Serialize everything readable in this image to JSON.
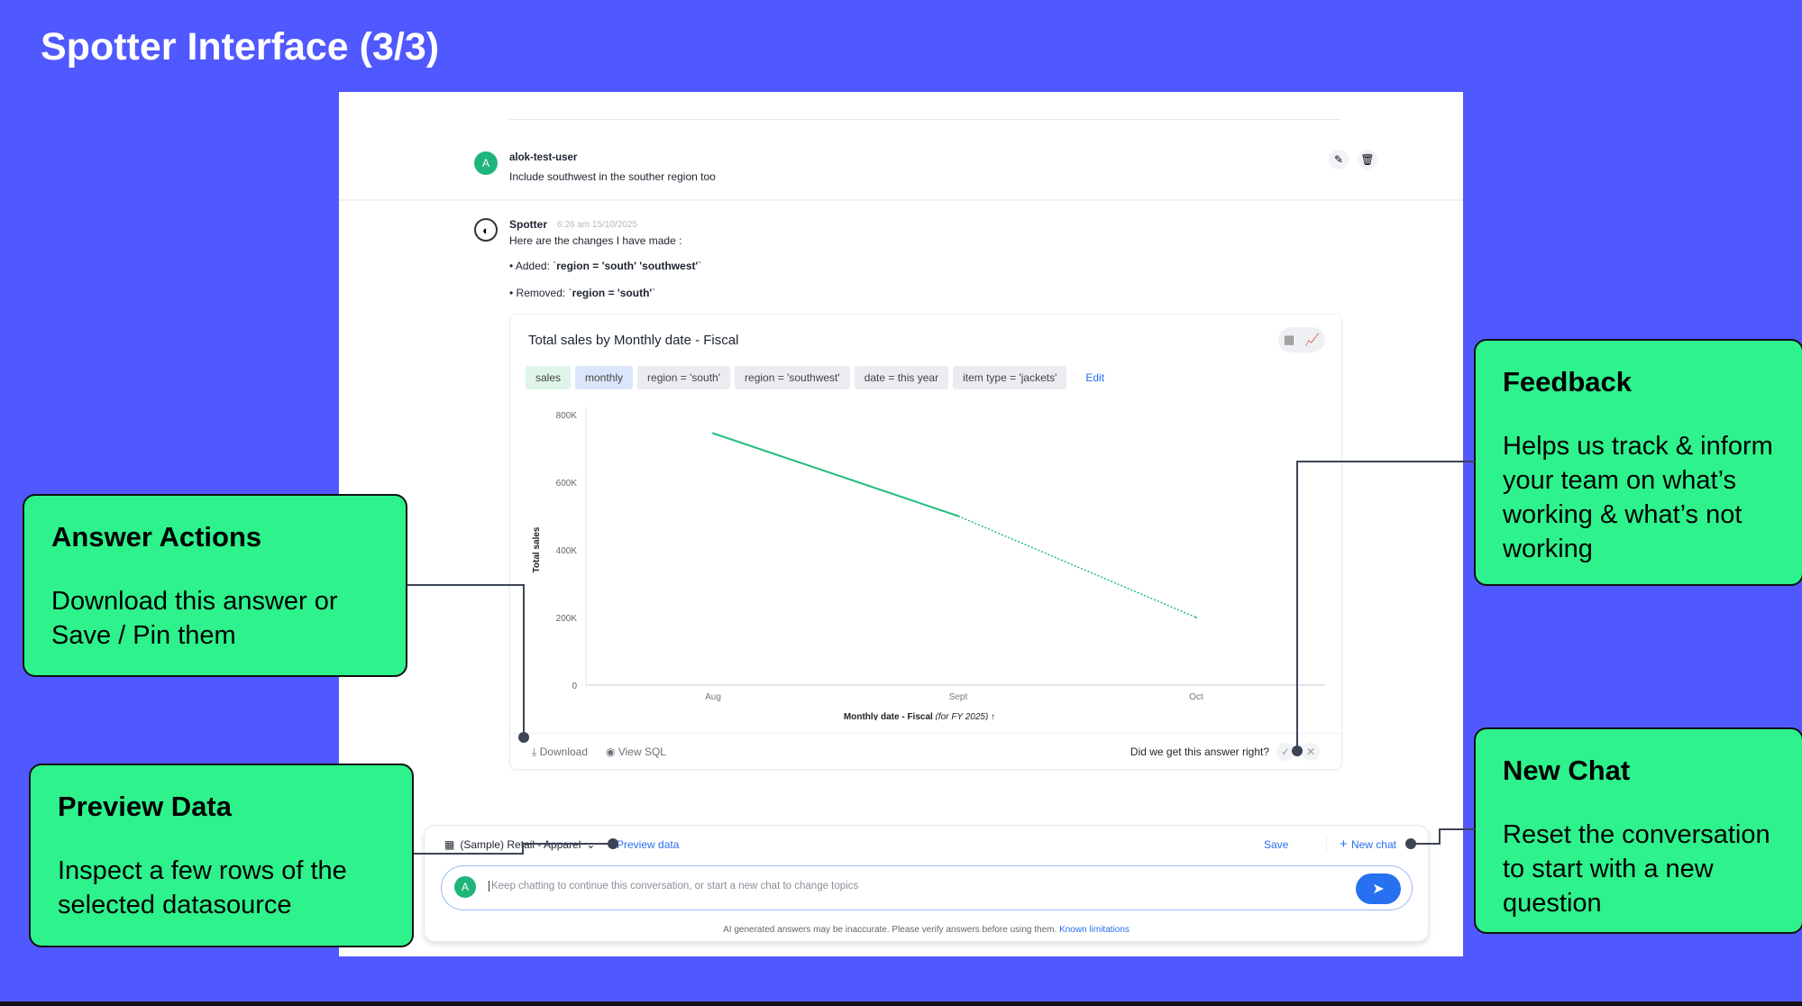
{
  "slide_title": "Spotter Interface (3/3)",
  "user_message": {
    "avatar": "A",
    "name": "alok-test-user",
    "text": "Include southwest in the souther region too",
    "icons": [
      "pencil-icon",
      "trash-icon"
    ]
  },
  "spotter_message": {
    "name": "Spotter",
    "timestamp": "6:26 am 15/10/2025",
    "intro": "Here are the changes I have made :",
    "added_label": "• Added: `",
    "added_value": "region = 'south' 'southwest'",
    "removed_label": "• Removed: `",
    "removed_value": "region = 'south'",
    "tick_close": "`"
  },
  "answer_card": {
    "title": "Total sales by Monthly date - Fiscal",
    "chips": [
      "sales",
      "monthly",
      "region = 'south'",
      "region = 'southwest'",
      "date = this year",
      "item type = 'jackets'"
    ],
    "edit_label": "Edit",
    "download_label": "Download",
    "view_sql_label": "View SQL",
    "feedback_question": "Did we get this answer right?"
  },
  "chart_data": {
    "type": "line",
    "categories": [
      "Aug",
      "Sept",
      "Oct"
    ],
    "series": [
      {
        "values": [
          745000,
          500000,
          200000
        ]
      }
    ],
    "ylabel": "Total sales",
    "xlabel": "Monthly date - Fiscal",
    "xlabel_suffix": "(for FY 2025)",
    "yticks": [
      "0",
      "200K",
      "400K",
      "600K",
      "800K"
    ],
    "ylim": [
      0,
      800000
    ],
    "color": "#1fbf7a",
    "note": ""
  },
  "chat": {
    "datasource": "(Sample) Retail - Apparel",
    "preview_label": "Preview data",
    "save_label": "Save",
    "new_chat_label": "New chat",
    "avatar": "A",
    "placeholder": "Keep chatting to continue this conversation, or start a new chat to change topics",
    "disclaimer": "AI generated answers may be inaccurate. Please verify answers before using them.",
    "known_limitations": "Known limitations"
  },
  "callouts": {
    "answer_actions": {
      "title": "Answer Actions",
      "body": "Download this answer or Save / Pin them"
    },
    "preview_data": {
      "title": "Preview Data",
      "body": "Inspect a few rows of the selected datasource"
    },
    "feedback": {
      "title": "Feedback",
      "body": "Helps us track & inform your team on what’s working & what’s not working"
    },
    "new_chat": {
      "title": "New Chat",
      "body": "Reset the conversation to start with a new question"
    }
  },
  "colors": {
    "background": "#5058ff",
    "callout": "#2ef28c",
    "accent": "#2770ef"
  }
}
